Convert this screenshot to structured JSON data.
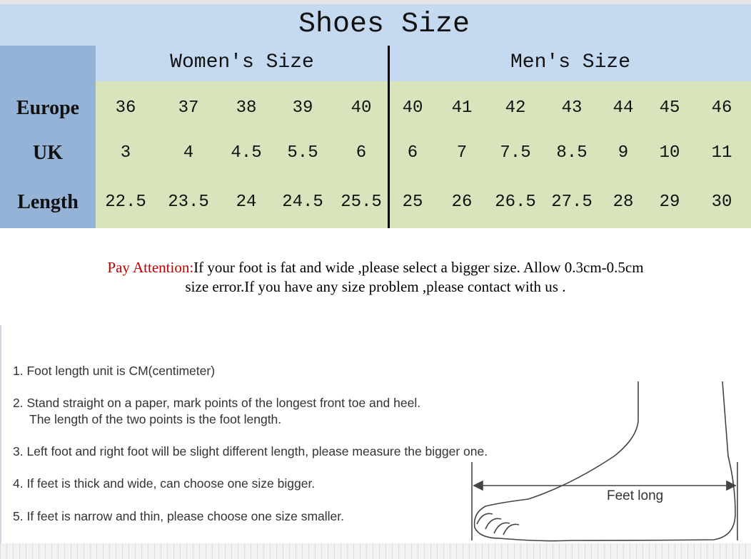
{
  "title": "Shoes Size",
  "groups": {
    "women": "Women's Size",
    "men": "Men's Size"
  },
  "rows": [
    {
      "label": "Europe",
      "women": [
        "36",
        "37",
        "38",
        "39",
        "40"
      ],
      "men": [
        "40",
        "41",
        "42",
        "43",
        "44",
        "45",
        "46"
      ]
    },
    {
      "label": "UK",
      "women": [
        "3",
        "4",
        "4.5",
        "5.5",
        "6"
      ],
      "men": [
        "6",
        "7",
        "7.5",
        "8.5",
        "9",
        "10",
        "11"
      ]
    },
    {
      "label": "Length",
      "women": [
        "22.5",
        "23.5",
        "24",
        "24.5",
        "25.5"
      ],
      "men": [
        "25",
        "26",
        "26.5",
        "27.5",
        "28",
        "29",
        "30"
      ]
    }
  ],
  "attention": {
    "label": "Pay Attention:",
    "line1": "If your foot is fat and wide ,please select a bigger size. Allow 0.3cm-0.5cm",
    "line2": "size error.If you have any size problem ,please contact with us ."
  },
  "steps": [
    "1. Foot length unit is CM(centimeter)",
    "2. Stand straight on a paper, mark points of the longest front toe and heel.",
    "The length of the two points is the foot length.",
    "3. Left foot and right foot will be slight different length, please measure the bigger one.",
    "4. If feet is thick and wide, can choose one size bigger.",
    "5. If feet is narrow and thin, please choose one size smaller."
  ],
  "diagram_label": "Feet long",
  "colors": {
    "header_blue": "#c5d9f1",
    "label_blue": "#95b3d7",
    "cell_green": "#d8e4bc",
    "attention_red": "#c00000"
  }
}
